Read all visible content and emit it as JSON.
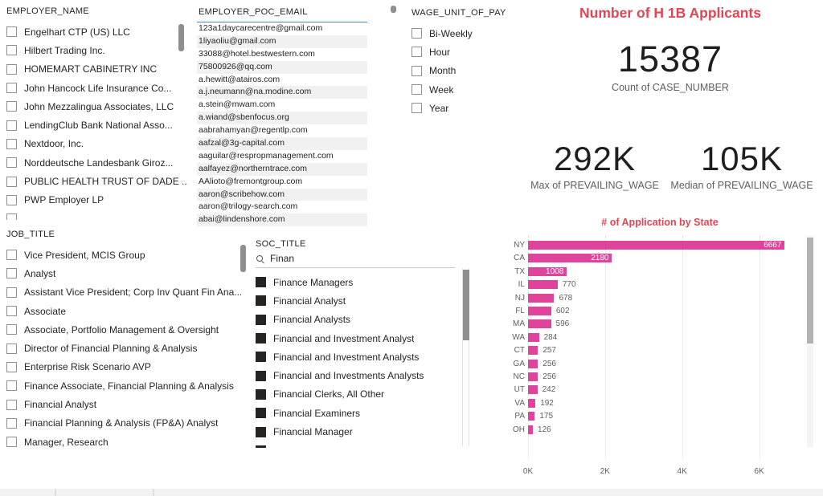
{
  "colors": {
    "accent_red": "#E04653",
    "bar_pink": "#E0439C"
  },
  "slicers": {
    "employer_name": {
      "title": "EMPLOYER_NAME",
      "items": [
        "Engelhart CTP (US) LLC",
        "Hilbert Trading Inc.",
        "HOMEMART CABINETRY INC",
        "John Hancock Life Insurance Co...",
        "John Mezzalingua Associates, LLC",
        "LendingClub Bank National Asso...",
        "Nextdoor, Inc.",
        "Norddeutsche Landesbank Giroz...",
        "PUBLIC HEALTH TRUST OF DADE ...",
        "PWP Employer LP"
      ],
      "has_partial_item": true
    },
    "job_title": {
      "title": "JOB_TITLE",
      "items": [
        "Vice President, MCIS Group",
        "Analyst",
        "Assistant Vice President; Corp Inv Quant Fin Ana...",
        "Associate",
        "Associate, Portfolio Management & Oversight",
        "Director of Financial Planning & Analysis",
        "Enterprise Risk Scenario AVP",
        "Finance Associate, Financial Planning & Analysis",
        "Financial Analyst",
        "Financial Planning & Analysis (FP&A) Analyst",
        "Manager, Research"
      ],
      "has_partial_item": false
    },
    "wage_unit_of_pay": {
      "title": "WAGE_UNIT_OF_PAY",
      "items": [
        "Bi-Weekly",
        "Hour",
        "Month",
        "Week",
        "Year"
      ],
      "has_partial_item": false
    },
    "soc_title": {
      "title": "SOC_TITLE",
      "search_value": "Finan",
      "items": [
        "Finance Managers",
        "Financial Analyst",
        "Financial Analysts",
        "Financial and Investment Analyst",
        "Financial and Investment Analysts",
        "Financial and Investments Analysts",
        "Financial Clerks, All Other",
        "Financial Examiners",
        "Financial Manager"
      ],
      "has_partial_item": true
    }
  },
  "email_table": {
    "header": "EMPLOYER_POC_EMAIL",
    "rows": [
      "123a1daycarecentre@gmail.com",
      "1liyaoliu@gmail.com",
      "33088@hotel.bestwestern.com",
      "75800926@qq.com",
      "a.hewitt@atairos.com",
      "a.j.neumann@na.modine.com",
      "a.stein@mwam.com",
      "a.wiand@sbenfocus.org",
      "aabrahamyan@regentlp.com",
      "aafzal@3g-capital.com",
      "aaguilar@respropmanagement.com",
      "aalfayez@northerntrace.com",
      "AAlioto@fremontgroup.com",
      "aaron@scribehow.com",
      "aaron@trilogy-search.com",
      "abai@lindenshore.com"
    ]
  },
  "kpis": {
    "applicants": {
      "title": "Number of H 1B Applicants",
      "value": "15387",
      "label": "Count of CASE_NUMBER"
    },
    "max_wage": {
      "value": "292K",
      "label": "Max of PREVAILING_WAGE"
    },
    "median_wage": {
      "value": "105K",
      "label": "Median of PREVAILING_WAGE"
    }
  },
  "chart_data": {
    "type": "bar",
    "title": "# of Application by State",
    "orientation": "horizontal",
    "categories": [
      "NY",
      "CA",
      "TX",
      "IL",
      "NJ",
      "FL",
      "MA",
      "WA",
      "CT",
      "GA",
      "NC",
      "UT",
      "VA",
      "PA",
      "OH"
    ],
    "values": [
      6667,
      2180,
      1008,
      770,
      678,
      602,
      596,
      284,
      257,
      256,
      256,
      242,
      192,
      175,
      126
    ],
    "xlabel": "",
    "ylabel": "",
    "xticks": [
      "0K",
      "2K",
      "4K",
      "6K"
    ],
    "xtick_values": [
      0,
      2000,
      4000,
      6000
    ],
    "xlim": [
      0,
      7200
    ],
    "grid": "vertical-dotted",
    "legend": "none",
    "bar_color": "#E0439C"
  }
}
